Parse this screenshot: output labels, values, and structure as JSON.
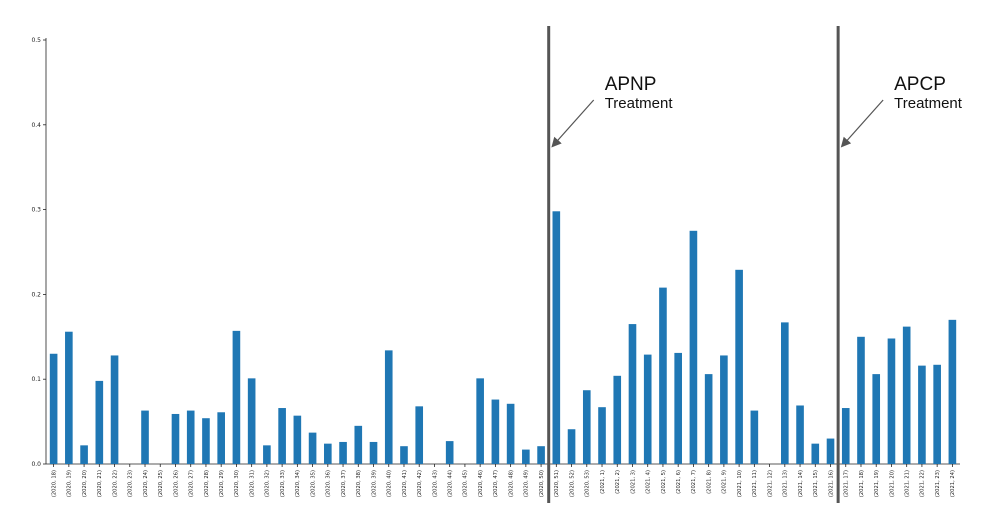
{
  "chart_data": {
    "type": "bar",
    "categories": [
      "(2020, 18)",
      "(2020, 19)",
      "(2020, 20)",
      "(2020, 21)",
      "(2020, 22)",
      "(2020, 23)",
      "(2020, 24)",
      "(2020, 25)",
      "(2020, 26)",
      "(2020, 27)",
      "(2020, 28)",
      "(2020, 29)",
      "(2020, 30)",
      "(2020, 31)",
      "(2020, 32)",
      "(2020, 33)",
      "(2020, 34)",
      "(2020, 35)",
      "(2020, 36)",
      "(2020, 37)",
      "(2020, 38)",
      "(2020, 39)",
      "(2020, 40)",
      "(2020, 41)",
      "(2020, 42)",
      "(2020, 43)",
      "(2020, 44)",
      "(2020, 45)",
      "(2020, 46)",
      "(2020, 47)",
      "(2020, 48)",
      "(2020, 49)",
      "(2020, 50)",
      "(2020, 51)",
      "(2020, 52)",
      "(2020, 53)",
      "(2021, 1)",
      "(2021, 2)",
      "(2021, 3)",
      "(2021, 4)",
      "(2021, 5)",
      "(2021, 6)",
      "(2021, 7)",
      "(2021, 8)",
      "(2021, 9)",
      "(2021, 10)",
      "(2021, 11)",
      "(2021, 12)",
      "(2021, 13)",
      "(2021, 14)",
      "(2021, 15)",
      "(2021, 16)",
      "(2021, 17)",
      "(2021, 18)",
      "(2021, 19)",
      "(2021, 20)",
      "(2021, 21)",
      "(2021, 22)",
      "(2021, 23)",
      "(2021, 24)"
    ],
    "values": [
      0.13,
      0.156,
      0.022,
      0.098,
      0.128,
      0.0,
      0.063,
      0.0,
      0.059,
      0.063,
      0.054,
      0.061,
      0.157,
      0.101,
      0.022,
      0.066,
      0.057,
      0.037,
      0.024,
      0.026,
      0.045,
      0.026,
      0.134,
      0.021,
      0.068,
      0.0,
      0.027,
      0.0,
      0.101,
      0.076,
      0.071,
      0.017,
      0.021,
      0.298,
      0.041,
      0.087,
      0.067,
      0.104,
      0.165,
      0.129,
      0.208,
      0.131,
      0.275,
      0.106,
      0.128,
      0.229,
      0.063,
      0.0,
      0.167,
      0.069,
      0.024,
      0.03,
      0.066,
      0.15,
      0.106,
      0.148,
      0.162,
      0.116,
      0.117,
      0.17
    ],
    "ylim": [
      0,
      0.5
    ],
    "yticks": [
      "0.0",
      "0.1",
      "0.2",
      "0.3",
      "0.4",
      "0.5"
    ],
    "bar_color": "#1f77b4",
    "grid": false,
    "annotations": [
      {
        "title": "APNP",
        "subtitle": "Treatment",
        "after_category": "(2020, 50)"
      },
      {
        "title": "APCP",
        "subtitle": "Treatment",
        "after_category": "(2021, 16)"
      }
    ]
  }
}
